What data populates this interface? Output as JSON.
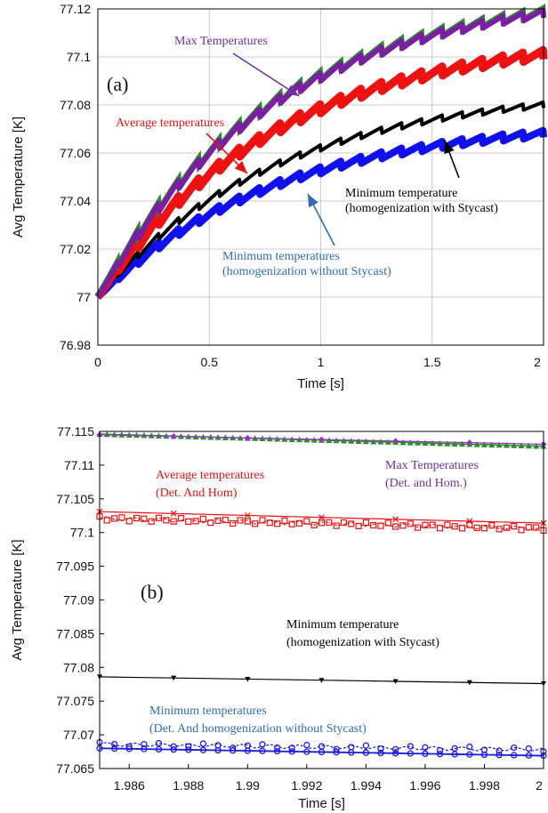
{
  "chart_data": [
    {
      "type": "line",
      "panel_label": "(a)",
      "xlabel": "Time [s]",
      "ylabel": "Avg Temperature [K]",
      "xlim": [
        0,
        2
      ],
      "ylim": [
        76.98,
        77.12
      ],
      "xticks": [
        "0",
        "0.5",
        "1",
        "1.5",
        "2"
      ],
      "yticks": [
        "76.98",
        "77",
        "77.02",
        "77.04",
        "77.06",
        "77.08",
        "77.1",
        "77.12"
      ],
      "grid": true,
      "series": [
        {
          "key": "max",
          "color": "#7a1fa2",
          "under_color": "#2e8b2e",
          "end": 77.118,
          "ripple": 0.0035
        },
        {
          "key": "avg",
          "color": "#ee1111",
          "end": 77.101,
          "ripple": 0.004
        },
        {
          "key": "min_with",
          "color": "#000000",
          "end": 77.08,
          "ripple": 0.0025
        },
        {
          "key": "min_without",
          "color": "#1010ee",
          "end": 77.068,
          "ripple": 0.003
        }
      ],
      "annotations": [
        {
          "key": "max",
          "color": "#7030a0",
          "lines": [
            "Max Temperatures"
          ]
        },
        {
          "key": "avg",
          "color": "#ee1111",
          "lines": [
            "Average temperatures"
          ]
        },
        {
          "key": "min_with",
          "color": "#000000",
          "lines": [
            "Minimum temperature",
            "(homogenization with Stycast)"
          ]
        },
        {
          "key": "min_without",
          "color": "#2e6db4",
          "lines": [
            "Minimum temperatures",
            "(homogenization without Stycast)"
          ]
        }
      ]
    },
    {
      "type": "line",
      "panel_label": "(b)",
      "xlabel": "Time [s]",
      "ylabel": "Avg Temperature [K]",
      "xlim": [
        1.985,
        2
      ],
      "ylim": [
        77.065,
        77.115
      ],
      "xticks": [
        "1.986",
        "1.988",
        "1.99",
        "1.992",
        "1.994",
        "1.996",
        "1.998",
        "2"
      ],
      "yticks": [
        "77.065",
        "77.07",
        "77.075",
        "77.08",
        "77.085",
        "77.09",
        "77.095",
        "77.1",
        "77.105",
        "77.11",
        "77.115"
      ],
      "grid": false,
      "series": [
        {
          "key": "max_det",
          "color": "#2e8b2e",
          "marker": "triangle",
          "y0": 77.1146,
          "y1": 77.1128
        },
        {
          "key": "max_hom",
          "color": "#9b30c8",
          "marker": "diamond",
          "y0": 77.1145,
          "y1": 77.1131
        },
        {
          "key": "avg_det",
          "color": "#ee1111",
          "marker": "square",
          "y0": 77.1021,
          "y1": 77.1006
        },
        {
          "key": "avg_hom",
          "color": "#ee1111",
          "marker": "x",
          "y0": 77.1031,
          "y1": 77.1014
        },
        {
          "key": "min_with",
          "color": "#000000",
          "marker": "triangle-down",
          "y0": 77.0786,
          "y1": 77.0776
        },
        {
          "key": "min_det",
          "color": "#1a1ae0",
          "marker": "circle",
          "y0": 77.0686,
          "y1": 77.0678
        },
        {
          "key": "min_hom",
          "color": "#1a1ae0",
          "marker": "circle",
          "y0": 77.068,
          "y1": 77.0669
        }
      ],
      "annotations": [
        {
          "key": "avg",
          "color": "#ee1111",
          "lines": [
            "Average temperatures",
            "(Det. And Hom)"
          ]
        },
        {
          "key": "max",
          "color": "#7030a0",
          "lines": [
            "Max Temperatures",
            "(Det. and Hom.)"
          ]
        },
        {
          "key": "min_with",
          "color": "#000000",
          "lines": [
            "Minimum temperature",
            "(homogenization with Stycast)"
          ]
        },
        {
          "key": "min_without",
          "color": "#2e6db4",
          "lines": [
            "Minimum temperatures",
            "(Det. And homogenization without Stycast)"
          ]
        }
      ]
    }
  ]
}
